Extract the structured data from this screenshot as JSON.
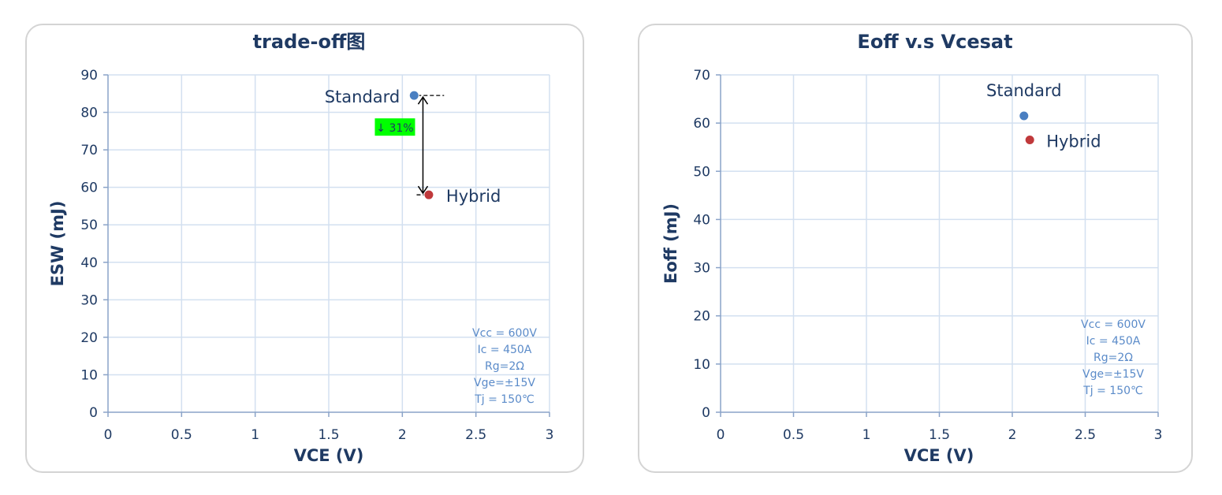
{
  "chart_data": [
    {
      "type": "scatter",
      "title": "trade-off图",
      "xlabel": "VCE (V)",
      "ylabel": "ESW (mJ)",
      "xlim": [
        0,
        3
      ],
      "ylim": [
        0,
        90
      ],
      "xticks": [
        0,
        0.5,
        1,
        1.5,
        2,
        2.5,
        3
      ],
      "xtick_labels": [
        "0",
        "0.5",
        "1",
        "1.5",
        "2",
        "2.5",
        "3"
      ],
      "yticks": [
        0,
        10,
        20,
        30,
        40,
        50,
        60,
        70,
        80,
        90
      ],
      "ytick_labels": [
        "0",
        "10",
        "20",
        "30",
        "40",
        "50",
        "60",
        "70",
        "80",
        "90"
      ],
      "grid": true,
      "points": [
        {
          "label": "Standard",
          "x": 2.08,
          "y": 84.5,
          "color": "#4a7fc1"
        },
        {
          "label": "Hybrid",
          "x": 2.18,
          "y": 58,
          "color": "#c0393b"
        }
      ],
      "annotation": {
        "text": "↓ 31%",
        "highlight": "#00ff00",
        "arrow_x": 2.14,
        "from_y": 84.5,
        "to_y": 58
      },
      "conditions": [
        "Vcc = 600V",
        "Ic = 450A",
        "Rg=2Ω",
        "Vge=±15V",
        "Tj = 150℃"
      ]
    },
    {
      "type": "scatter",
      "title": "Eoff v.s Vcesat",
      "xlabel": "VCE (V)",
      "ylabel": "Eoff (mJ)",
      "xlim": [
        0,
        3
      ],
      "ylim": [
        0,
        70
      ],
      "xticks": [
        0,
        0.5,
        1,
        1.5,
        2,
        2.5,
        3
      ],
      "xtick_labels": [
        "0",
        "0.5",
        "1",
        "1.5",
        "2",
        "2.5",
        "3"
      ],
      "yticks": [
        0,
        10,
        20,
        30,
        40,
        50,
        60,
        70
      ],
      "ytick_labels": [
        "0",
        "10",
        "20",
        "30",
        "40",
        "50",
        "60",
        "70"
      ],
      "grid": true,
      "points": [
        {
          "label": "Standard",
          "x": 2.08,
          "y": 61.5,
          "color": "#4a7fc1"
        },
        {
          "label": "Hybrid",
          "x": 2.12,
          "y": 56.5,
          "color": "#c0393b"
        }
      ],
      "conditions": [
        "Vcc = 600V",
        "Ic = 450A",
        "Rg=2Ω",
        "Vge=±15V",
        "Tj = 150℃"
      ]
    }
  ]
}
